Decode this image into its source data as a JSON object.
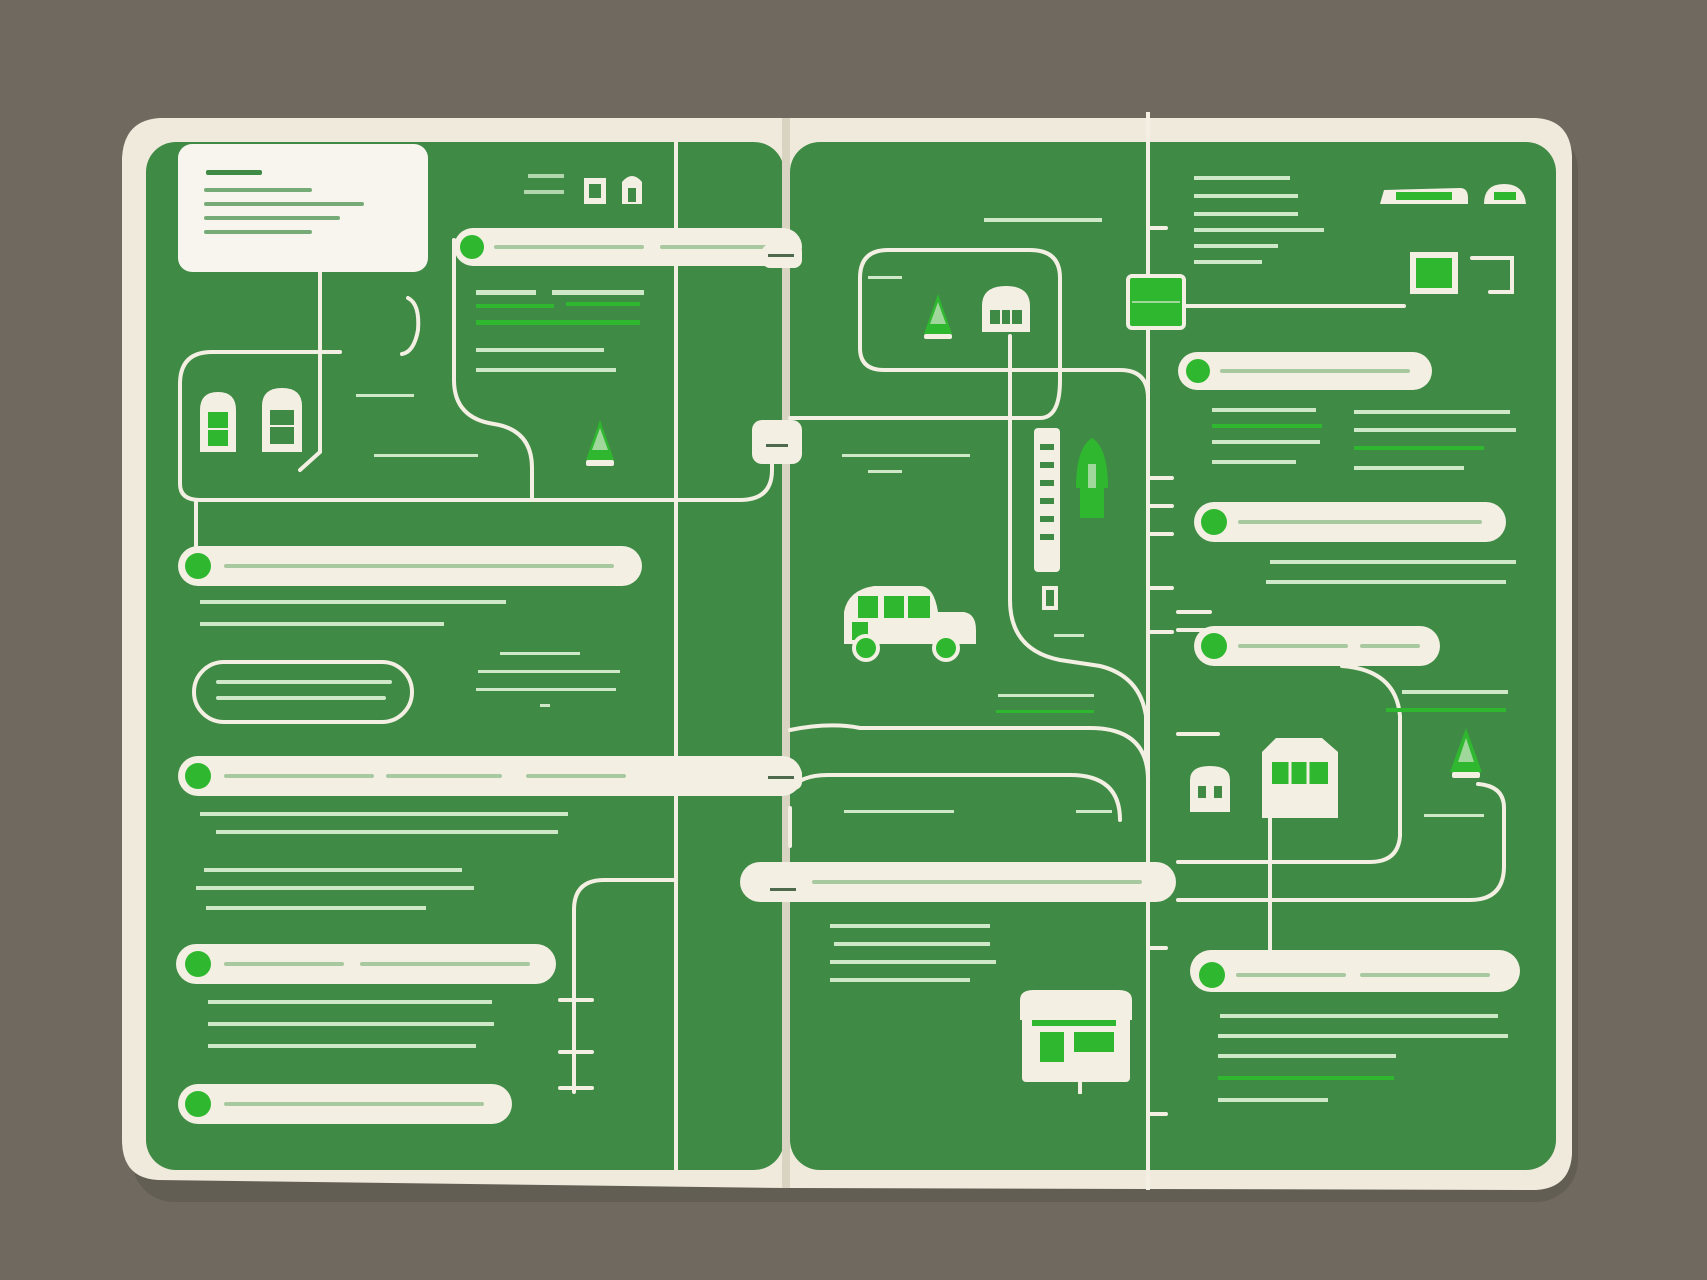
{
  "palette": {
    "background": "#6f695f",
    "paper": "#efeadc",
    "page_green": "#3f8a45",
    "accent_green": "#2fb82f",
    "line": "#f3efe2"
  },
  "icons": [
    "house-icon",
    "tree-icon",
    "car-icon",
    "building-icon",
    "bus-icon",
    "sign-icon"
  ],
  "note": {
    "heading": "",
    "lines": []
  }
}
